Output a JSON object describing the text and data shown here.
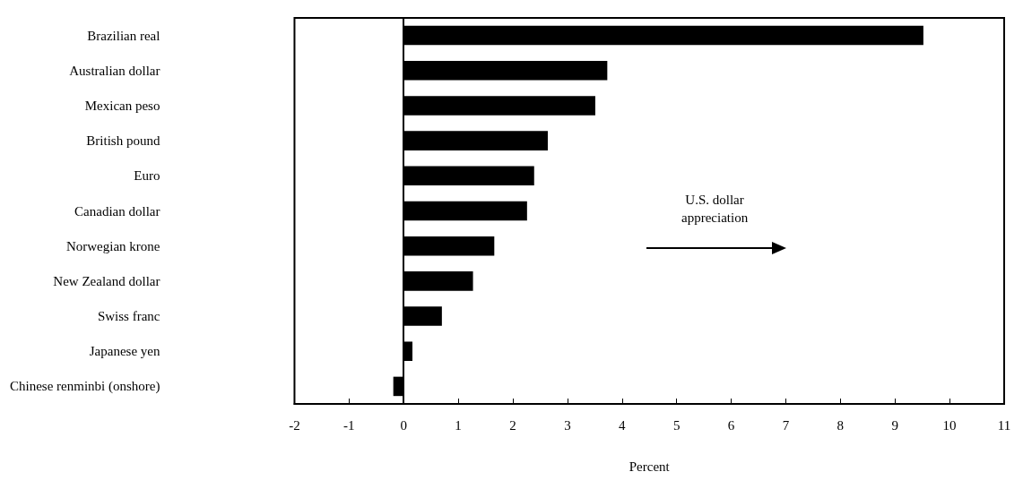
{
  "chart_data": {
    "type": "bar",
    "orientation": "horizontal",
    "xlabel": "Percent",
    "categories": [
      "Brazilian real",
      "Australian dollar",
      "Mexican peso",
      "British pound",
      "Euro",
      "Canadian dollar",
      "Norwegian krone",
      "New Zealand dollar",
      "Swiss franc",
      "Japanese yen",
      "Chinese renminbi (onshore)"
    ],
    "values": [
      9.52,
      3.73,
      3.51,
      2.64,
      2.39,
      2.26,
      1.66,
      1.27,
      0.7,
      0.16,
      -0.19
    ],
    "color": "#000000",
    "xlim": [
      -2,
      11
    ],
    "xticks": [
      -2,
      -1,
      0,
      1,
      2,
      3,
      4,
      5,
      6,
      7,
      8,
      9,
      10,
      11
    ],
    "annotations": [
      "U.S. dollar\nappreciation"
    ]
  }
}
